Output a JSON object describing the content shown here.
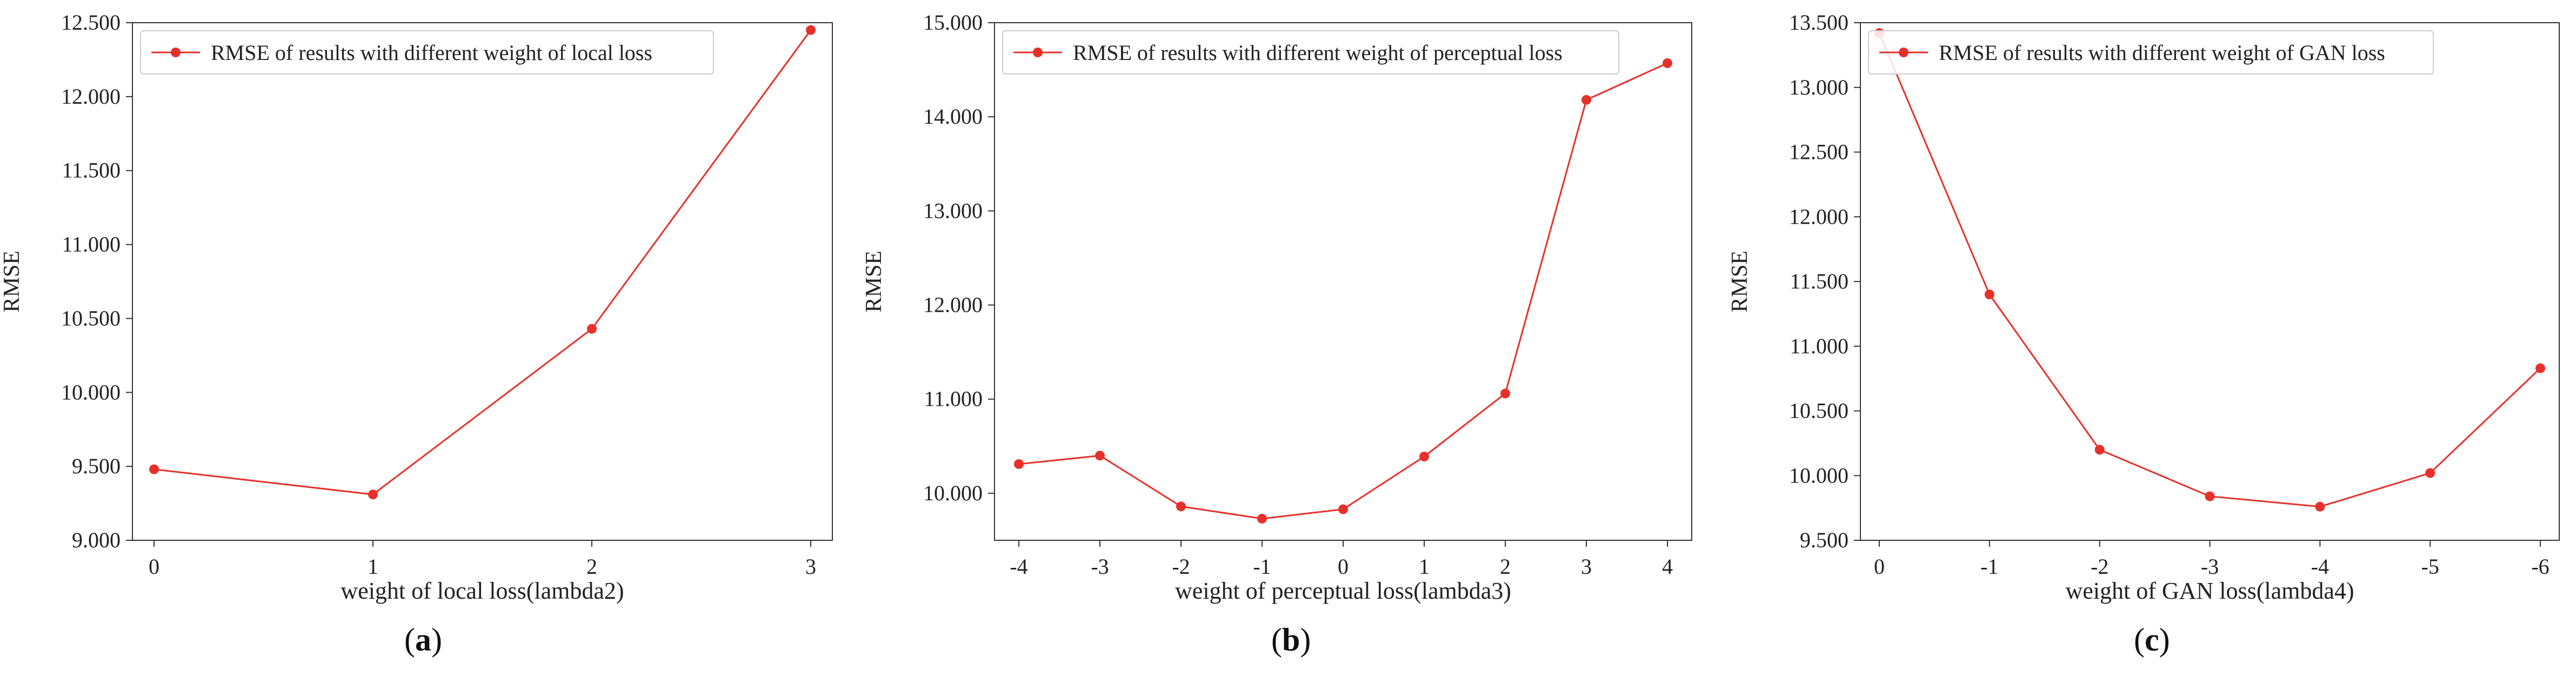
{
  "chart_data": [
    {
      "type": "line",
      "panel_label": "a",
      "title": "",
      "xlabel": "weight of local loss(lambda2)",
      "ylabel": "RMSE",
      "legend": "RMSE of results with different weight of local loss",
      "legend_position": "top-left",
      "categories": [
        "0",
        "1",
        "2",
        "3"
      ],
      "series": [
        {
          "name": "RMSE of results with different weight of local loss",
          "values": [
            9.48,
            9.31,
            10.43,
            12.45
          ]
        }
      ],
      "ylim": [
        9.0,
        12.5
      ],
      "yticks": [
        "9.000",
        "9.500",
        "10.000",
        "10.500",
        "11.000",
        "11.500",
        "12.000",
        "12.500"
      ],
      "ytick_values": [
        9.0,
        9.5,
        10.0,
        10.5,
        11.0,
        11.5,
        12.0,
        12.5
      ],
      "grid": false,
      "color": "#e8302a"
    },
    {
      "type": "line",
      "panel_label": "b",
      "title": "",
      "xlabel": "weight of perceptual loss(lambda3)",
      "ylabel": "RMSE",
      "legend": "RMSE of results with different weight of perceptual loss",
      "legend_position": "top-left",
      "categories": [
        "-4",
        "-3",
        "-2",
        "-1",
        "0",
        "1",
        "2",
        "3",
        "4"
      ],
      "series": [
        {
          "name": "RMSE of results with different weight of perceptual loss",
          "values": [
            10.31,
            10.4,
            9.86,
            9.73,
            9.83,
            10.39,
            11.06,
            14.18,
            14.57
          ]
        }
      ],
      "ylim": [
        9.5,
        15.0
      ],
      "yticks": [
        "10.000",
        "11.000",
        "12.000",
        "13.000",
        "14.000",
        "15.000"
      ],
      "ytick_values": [
        10.0,
        11.0,
        12.0,
        13.0,
        14.0,
        15.0
      ],
      "grid": false,
      "color": "#e8302a"
    },
    {
      "type": "line",
      "panel_label": "c",
      "title": "",
      "xlabel": "weight of GAN loss(lambda4)",
      "ylabel": "RMSE",
      "legend": "RMSE of results with different weight of GAN loss",
      "legend_position": "top-left",
      "categories": [
        "0",
        "-1",
        "-2",
        "-3",
        "-4",
        "-5",
        "-6"
      ],
      "series": [
        {
          "name": "RMSE of results with different weight of GAN loss",
          "values": [
            13.42,
            11.4,
            10.2,
            9.84,
            9.76,
            10.02,
            10.83
          ]
        }
      ],
      "ylim": [
        9.5,
        13.5
      ],
      "yticks": [
        "9.500",
        "10.000",
        "10.500",
        "11.000",
        "11.500",
        "12.000",
        "12.500",
        "13.000",
        "13.500"
      ],
      "ytick_values": [
        9.5,
        10.0,
        10.5,
        11.0,
        11.5,
        12.0,
        12.5,
        13.0,
        13.5
      ],
      "grid": false,
      "color": "#e8302a"
    }
  ]
}
